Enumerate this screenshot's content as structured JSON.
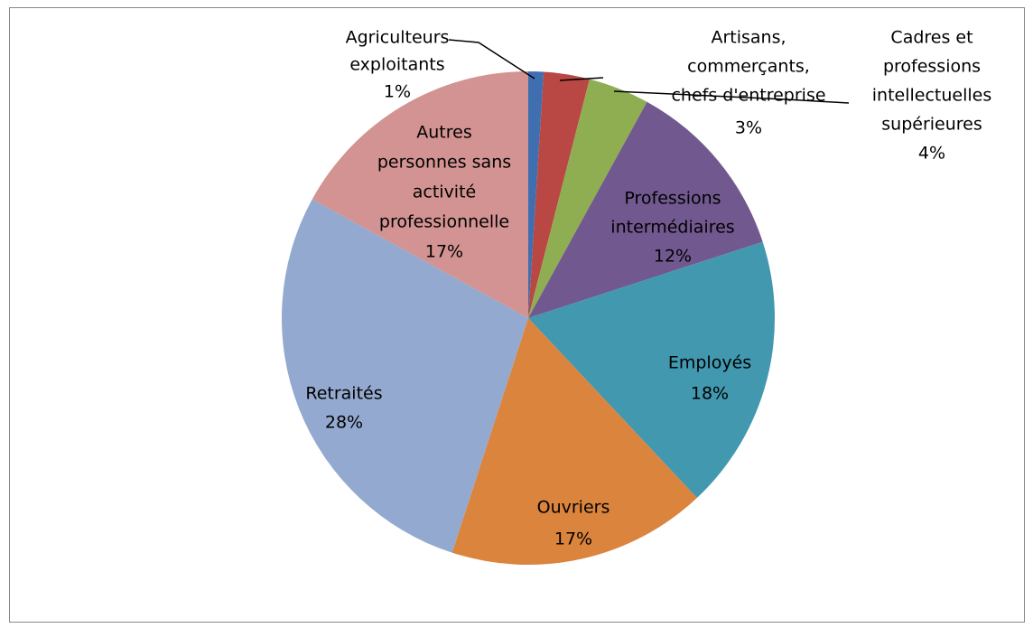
{
  "chart_data": {
    "type": "pie",
    "categories": [
      [
        "Agriculteurs",
        "exploitants"
      ],
      [
        "Artisans,",
        "commerçants,",
        "chefs d'entreprise"
      ],
      [
        "Cadres et",
        "professions",
        "intellectuelles",
        "supérieures"
      ],
      [
        "Professions",
        "intermédiaires"
      ],
      [
        "Employés"
      ],
      [
        "Ouvriers"
      ],
      [
        "Retraités"
      ],
      [
        "Autres",
        "personnes sans",
        "activité",
        "professionnelle"
      ]
    ],
    "values": [
      1,
      3,
      4,
      12,
      18,
      17,
      28,
      17
    ],
    "value_labels": [
      "1%",
      "3%",
      "4%",
      "12%",
      "18%",
      "17%",
      "28%",
      "17%"
    ],
    "colors": [
      "#3f6fb1",
      "#b94744",
      "#8fad51",
      "#71588f",
      "#4198af",
      "#db843d",
      "#94a9cf",
      "#d29392"
    ]
  }
}
